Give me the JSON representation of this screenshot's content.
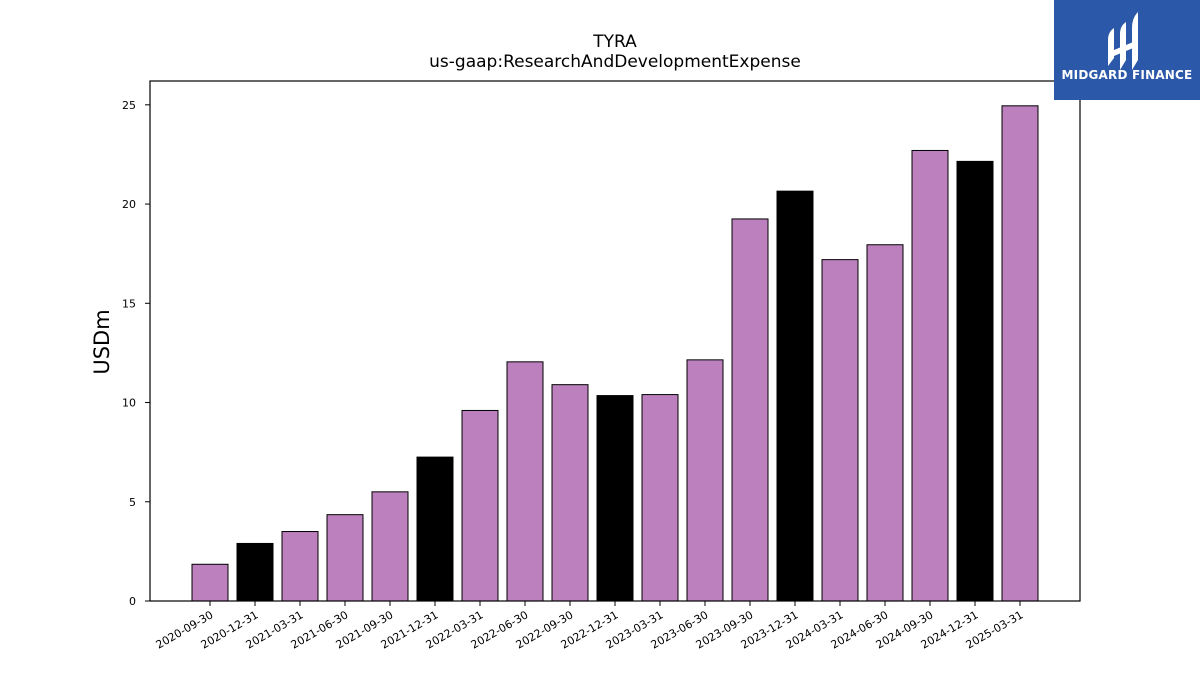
{
  "chart_data": {
    "type": "bar",
    "title": "TYRA",
    "subtitle": "us-gaap:ResearchAndDevelopmentExpense",
    "ylabel": "USDm",
    "xlabel": "",
    "ylim": [
      0,
      26.2
    ],
    "yticks": [
      0,
      5,
      10,
      15,
      20,
      25
    ],
    "grid": false,
    "categories": [
      "2020-09-30",
      "2020-12-31",
      "2021-03-31",
      "2021-06-30",
      "2021-09-30",
      "2021-12-31",
      "2022-03-31",
      "2022-06-30",
      "2022-09-30",
      "2022-12-31",
      "2023-03-31",
      "2023-06-30",
      "2023-09-30",
      "2023-12-31",
      "2024-03-31",
      "2024-06-30",
      "2024-09-30",
      "2024-12-31",
      "2025-03-31"
    ],
    "values": [
      1.85,
      2.9,
      3.5,
      4.35,
      5.5,
      7.25,
      9.6,
      12.05,
      10.9,
      10.35,
      10.4,
      12.15,
      19.25,
      20.65,
      17.2,
      17.95,
      22.7,
      22.15,
      24.95
    ],
    "colors": {
      "quarter": "#bb80bd",
      "year_end": "#000000",
      "edge": "#000000"
    },
    "bar_colors": [
      "quarter",
      "year_end",
      "quarter",
      "quarter",
      "quarter",
      "year_end",
      "quarter",
      "quarter",
      "quarter",
      "year_end",
      "quarter",
      "quarter",
      "quarter",
      "year_end",
      "quarter",
      "quarter",
      "quarter",
      "year_end",
      "quarter"
    ]
  },
  "logo": {
    "text": "MIDGARD FINANCE",
    "icon": "midgard-logo-icon",
    "bg": "#2b58a8"
  }
}
